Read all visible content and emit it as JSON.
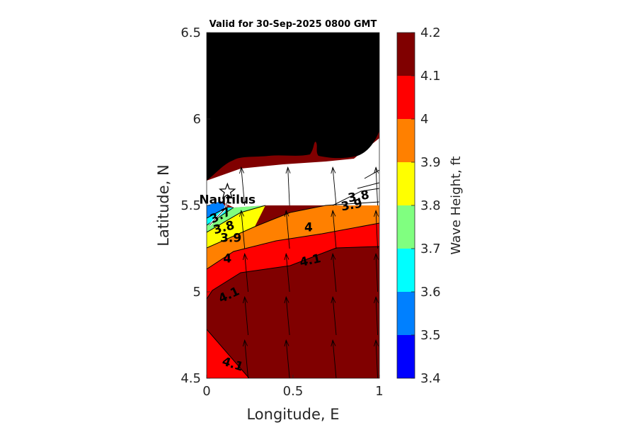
{
  "chart_data": {
    "type": "contour",
    "title": "Valid for 30-Sep-2025 0800 GMT",
    "xlabel": "Longitude, E",
    "ylabel": "Latitude, N",
    "xlim": [
      0,
      1
    ],
    "ylim": [
      4.5,
      6.5
    ],
    "xticks": [
      "0",
      "0.5",
      "1"
    ],
    "yticks": [
      "4.5",
      "5",
      "5.5",
      "6",
      "6.5"
    ],
    "colorbar": {
      "label": "Wave Height, ft",
      "range": [
        3.4,
        4.2
      ],
      "ticks": [
        "3.4",
        "3.5",
        "3.6",
        "3.7",
        "3.8",
        "3.9",
        "4",
        "4.1",
        "4.2"
      ],
      "levels": [
        {
          "from": 3.4,
          "to": 3.5,
          "color": "#0000ff"
        },
        {
          "from": 3.5,
          "to": 3.6,
          "color": "#0080ff"
        },
        {
          "from": 3.6,
          "to": 3.7,
          "color": "#00ffff"
        },
        {
          "from": 3.7,
          "to": 3.8,
          "color": "#80ff80"
        },
        {
          "from": 3.8,
          "to": 3.9,
          "color": "#ffff00"
        },
        {
          "from": 3.9,
          "to": 4.0,
          "color": "#ff8000"
        },
        {
          "from": 4.0,
          "to": 4.1,
          "color": "#ff0000"
        },
        {
          "from": 4.1,
          "to": 4.2,
          "color": "#800000"
        }
      ]
    },
    "contour_labels": [
      {
        "text": "3.8",
        "x": 0.88,
        "y": 5.55,
        "angle": -10
      },
      {
        "text": "3.9",
        "x": 0.84,
        "y": 5.5,
        "angle": -10
      },
      {
        "text": "4",
        "x": 0.59,
        "y": 5.37,
        "angle": 0
      },
      {
        "text": "4.1",
        "x": 0.6,
        "y": 5.18,
        "angle": -12
      },
      {
        "text": "4",
        "x": 0.12,
        "y": 5.19,
        "angle": 0
      },
      {
        "text": "4.1",
        "x": 0.13,
        "y": 4.98,
        "angle": -25
      },
      {
        "text": "4.1",
        "x": 0.15,
        "y": 4.58,
        "angle": 18
      },
      {
        "text": "3.9",
        "x": 0.14,
        "y": 5.31,
        "angle": 0
      },
      {
        "text": "3.8",
        "x": 0.1,
        "y": 5.37,
        "angle": -15
      },
      {
        "text": "3.7",
        "x": 0.08,
        "y": 5.44,
        "angle": -25
      }
    ],
    "station": {
      "name": "Nautilus",
      "x": 0.12,
      "y": 5.58
    },
    "vectors": [
      {
        "x": 0.22,
        "y": 5.5,
        "dx": -0.02,
        "dy": 0.22
      },
      {
        "x": 0.48,
        "y": 5.5,
        "dx": -0.01,
        "dy": 0.22
      },
      {
        "x": 0.75,
        "y": 5.5,
        "dx": -0.02,
        "dy": 0.22
      },
      {
        "x": 0.99,
        "y": 5.5,
        "dx": -0.01,
        "dy": 0.22
      },
      {
        "x": 0.22,
        "y": 5.25,
        "dx": -0.02,
        "dy": 0.22
      },
      {
        "x": 0.48,
        "y": 5.25,
        "dx": -0.02,
        "dy": 0.22
      },
      {
        "x": 0.75,
        "y": 5.25,
        "dx": -0.02,
        "dy": 0.22
      },
      {
        "x": 0.99,
        "y": 5.25,
        "dx": -0.01,
        "dy": 0.22
      },
      {
        "x": 0.24,
        "y": 5.0,
        "dx": -0.02,
        "dy": 0.22
      },
      {
        "x": 0.48,
        "y": 5.0,
        "dx": -0.02,
        "dy": 0.22
      },
      {
        "x": 0.75,
        "y": 5.0,
        "dx": -0.02,
        "dy": 0.22
      },
      {
        "x": 0.99,
        "y": 5.0,
        "dx": -0.01,
        "dy": 0.22
      },
      {
        "x": 0.24,
        "y": 4.75,
        "dx": -0.02,
        "dy": 0.22
      },
      {
        "x": 0.48,
        "y": 4.75,
        "dx": -0.02,
        "dy": 0.22
      },
      {
        "x": 0.75,
        "y": 4.75,
        "dx": -0.02,
        "dy": 0.22
      },
      {
        "x": 0.99,
        "y": 4.75,
        "dx": -0.01,
        "dy": 0.22
      },
      {
        "x": 0.24,
        "y": 4.5,
        "dx": -0.02,
        "dy": 0.22
      },
      {
        "x": 0.48,
        "y": 4.5,
        "dx": -0.02,
        "dy": 0.22
      },
      {
        "x": 0.75,
        "y": 4.5,
        "dx": -0.02,
        "dy": 0.22
      },
      {
        "x": 0.99,
        "y": 4.5,
        "dx": -0.01,
        "dy": 0.22
      }
    ]
  }
}
